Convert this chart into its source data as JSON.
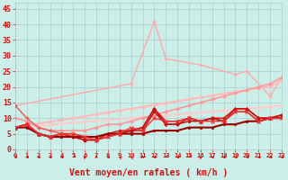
{
  "xlabel": "Vent moyen/en rafales ( km/h )",
  "xlim": [
    0,
    23
  ],
  "ylim": [
    0,
    47
  ],
  "bg_color": "#cceee8",
  "grid_color": "#aacccc",
  "series": [
    {
      "x": [
        0,
        10,
        12,
        13,
        16,
        19,
        20,
        22,
        23
      ],
      "y": [
        14,
        21,
        41,
        29,
        27,
        24,
        25,
        17,
        23
      ],
      "color": "#ffaaaa",
      "lw": 1.0,
      "marker": "+",
      "ms": 3.5,
      "mew": 1.0
    },
    {
      "x": [
        0,
        1,
        2,
        3,
        4,
        5,
        6,
        7,
        8,
        9,
        10,
        11,
        12,
        13,
        14,
        15,
        16,
        17,
        18,
        19,
        20,
        21,
        22,
        23
      ],
      "y": [
        7,
        7.6,
        8.2,
        8.8,
        9.4,
        10,
        10.6,
        11.2,
        11.8,
        12.4,
        13,
        13.6,
        14.2,
        14.8,
        15.4,
        16,
        16.6,
        17.2,
        17.8,
        18.4,
        19,
        19.6,
        20.2,
        22
      ],
      "color": "#ffbbbb",
      "lw": 1.5,
      "marker": "D",
      "ms": 2.0,
      "mew": 0.5
    },
    {
      "x": [
        0,
        1,
        2,
        3,
        4,
        5,
        6,
        7,
        8,
        9,
        10,
        11,
        12,
        13,
        14,
        15,
        16,
        17,
        18,
        19,
        20,
        21,
        22,
        23
      ],
      "y": [
        7,
        7.3,
        7.6,
        7.9,
        8.2,
        8.5,
        8.8,
        9.1,
        9.4,
        9.7,
        10,
        10.3,
        10.6,
        10.9,
        11.2,
        11.5,
        11.8,
        12.1,
        12.4,
        12.7,
        13,
        13.3,
        13.6,
        14
      ],
      "color": "#ffcccc",
      "lw": 1.5,
      "marker": "D",
      "ms": 2.0,
      "mew": 0.5
    },
    {
      "x": [
        0,
        1,
        2,
        3,
        4,
        5,
        6,
        7,
        8,
        9,
        10,
        11,
        12,
        13,
        14,
        15,
        16,
        17,
        18,
        19,
        20,
        21,
        22,
        23
      ],
      "y": [
        10,
        9,
        7,
        6,
        6,
        6,
        6,
        7,
        8,
        8,
        9,
        10,
        11,
        12,
        13,
        14,
        15,
        16,
        17,
        18,
        19,
        20,
        21,
        23
      ],
      "color": "#ff9999",
      "lw": 1.2,
      "marker": "D",
      "ms": 2.0,
      "mew": 0.5
    },
    {
      "x": [
        0,
        1,
        2,
        3,
        4,
        5,
        6,
        7,
        8,
        9,
        10,
        11,
        12,
        13,
        14,
        15,
        16,
        17,
        18,
        19,
        20,
        21,
        22,
        23
      ],
      "y": [
        7,
        8,
        5,
        4,
        5,
        4,
        3,
        3,
        5,
        5,
        6,
        7,
        13,
        8,
        8,
        10,
        9,
        10,
        9,
        13,
        13,
        10,
        10,
        11
      ],
      "color": "#dd1111",
      "lw": 1.2,
      "marker": "D",
      "ms": 2.0,
      "mew": 0.5
    },
    {
      "x": [
        0,
        1,
        2,
        3,
        4,
        5,
        6,
        7,
        8,
        9,
        10,
        11,
        12,
        13,
        14,
        15,
        16,
        17,
        18,
        19,
        20,
        21,
        22,
        23
      ],
      "y": [
        7,
        8,
        5,
        4,
        5,
        5,
        4,
        4,
        5,
        6,
        6,
        7,
        13,
        9,
        9,
        10,
        9,
        10,
        10,
        13,
        13,
        10,
        10,
        11
      ],
      "color": "#cc1111",
      "lw": 1.0,
      "marker": "^",
      "ms": 2.5,
      "mew": 0.5
    },
    {
      "x": [
        0,
        1,
        2,
        3,
        4,
        5,
        6,
        7,
        8,
        9,
        10,
        11,
        12,
        13,
        14,
        15,
        16,
        17,
        18,
        19,
        20,
        21,
        22,
        23
      ],
      "y": [
        7,
        8,
        5,
        4,
        4,
        4,
        3,
        3,
        4,
        5,
        6,
        6,
        12,
        8,
        8,
        9,
        9,
        10,
        9,
        12,
        12,
        9,
        10,
        10
      ],
      "color": "#bb1111",
      "lw": 1.0,
      "marker": "s",
      "ms": 1.8,
      "mew": 0.5
    },
    {
      "x": [
        0,
        1,
        2,
        3,
        4
      ],
      "y": [
        14,
        10,
        7,
        6,
        5
      ],
      "color": "#ee5555",
      "lw": 1.0,
      "marker": "+",
      "ms": 3,
      "mew": 0.8
    },
    {
      "x": [
        0,
        1,
        2,
        3,
        4,
        5,
        6,
        7,
        8,
        9,
        10,
        11,
        12,
        13,
        14,
        15,
        16,
        17,
        18,
        19,
        20,
        21,
        22,
        23
      ],
      "y": [
        7,
        7,
        5,
        4,
        4,
        4,
        4,
        4,
        5,
        5,
        5,
        5,
        6,
        6,
        6,
        7,
        7,
        7,
        8,
        8,
        9,
        9,
        10,
        10
      ],
      "color": "#990000",
      "lw": 1.5,
      "marker": "s",
      "ms": 1.5,
      "mew": 0.5
    },
    {
      "x": [
        0,
        1,
        2,
        3,
        4,
        5,
        6,
        7,
        8,
        9,
        10,
        11,
        12,
        13,
        14,
        15,
        16,
        17,
        18,
        19,
        20,
        21,
        22,
        23
      ],
      "y": [
        7,
        8,
        5,
        4,
        5,
        5,
        4,
        3,
        4,
        5,
        7,
        6,
        10,
        9,
        9,
        10,
        9,
        9,
        9,
        12,
        12,
        9,
        10,
        10
      ],
      "color": "#ee3333",
      "lw": 1.0,
      "marker": "x",
      "ms": 2.5,
      "mew": 0.8
    }
  ],
  "xticks": [
    0,
    1,
    2,
    3,
    4,
    5,
    6,
    7,
    8,
    9,
    10,
    11,
    12,
    13,
    14,
    15,
    16,
    17,
    18,
    19,
    20,
    21,
    22,
    23
  ],
  "yticks": [
    0,
    5,
    10,
    15,
    20,
    25,
    30,
    35,
    40,
    45
  ],
  "tick_color": "#cc1111",
  "axis_label_color": "#cc1111",
  "axis_label_fontsize": 7,
  "ytick_fontsize": 6,
  "xtick_fontsize": 5,
  "arrow_dirs": [
    270,
    270,
    270,
    270,
    270,
    315,
    0,
    180,
    270,
    225,
    225,
    180,
    270,
    315,
    270,
    315,
    0,
    270,
    270,
    270,
    270,
    270,
    270,
    270
  ]
}
